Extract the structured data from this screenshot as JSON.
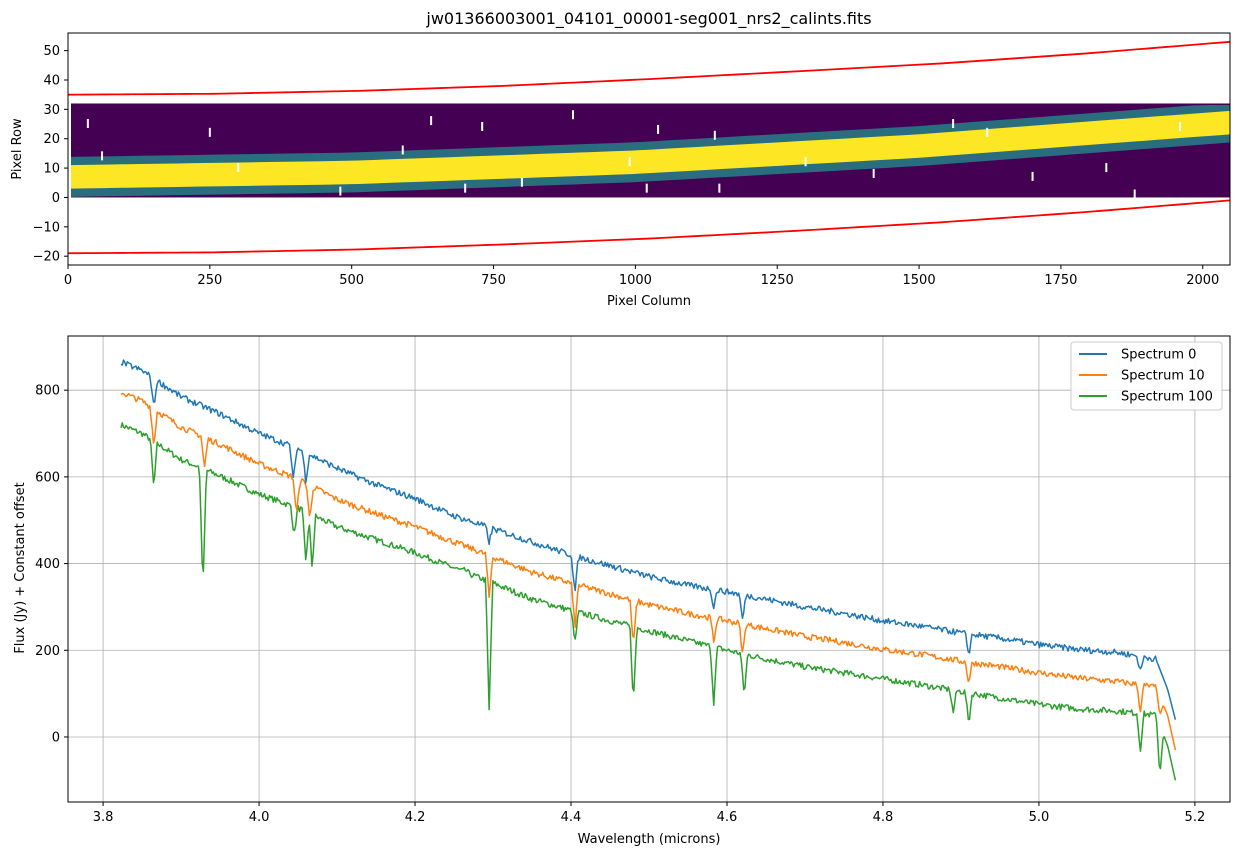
{
  "chart_data": [
    {
      "type": "heatmap",
      "title": "jw01366003001_04101_00001-seg001_nrs2_calints.fits",
      "xlabel": "Pixel Column",
      "ylabel": "Pixel Row",
      "xlim": [
        0,
        2048
      ],
      "ylim": [
        -23,
        56
      ],
      "xticks": [
        0,
        250,
        500,
        750,
        1000,
        1250,
        1500,
        1750,
        2000
      ],
      "yticks": [
        -20,
        -10,
        0,
        10,
        20,
        30,
        40,
        50
      ],
      "image_extent": {
        "x": [
          0,
          2048
        ],
        "y": [
          0,
          32
        ]
      },
      "colormap": {
        "background": "#440154",
        "mid": "#21918c",
        "peak": "#fde725"
      },
      "trace_center": [
        {
          "x": 0,
          "y": 7
        },
        {
          "x": 500,
          "y": 8.5
        },
        {
          "x": 1000,
          "y": 12
        },
        {
          "x": 1500,
          "y": 17.5
        },
        {
          "x": 2048,
          "y": 25.5
        }
      ],
      "trace_halfwidth": 4,
      "cosmic_rays": [
        {
          "x": 35,
          "y": 25
        },
        {
          "x": 60,
          "y": 14
        },
        {
          "x": 250,
          "y": 22
        },
        {
          "x": 300,
          "y": 10
        },
        {
          "x": 480,
          "y": 2
        },
        {
          "x": 590,
          "y": 16
        },
        {
          "x": 640,
          "y": 26
        },
        {
          "x": 700,
          "y": 3
        },
        {
          "x": 730,
          "y": 24
        },
        {
          "x": 800,
          "y": 5
        },
        {
          "x": 890,
          "y": 28
        },
        {
          "x": 990,
          "y": 12
        },
        {
          "x": 1020,
          "y": 3
        },
        {
          "x": 1040,
          "y": 23
        },
        {
          "x": 1140,
          "y": 21
        },
        {
          "x": 1148,
          "y": 3
        },
        {
          "x": 1300,
          "y": 12
        },
        {
          "x": 1420,
          "y": 8
        },
        {
          "x": 1560,
          "y": 25
        },
        {
          "x": 1620,
          "y": 22
        },
        {
          "x": 1700,
          "y": 7
        },
        {
          "x": 1830,
          "y": 10
        },
        {
          "x": 1880,
          "y": 1
        },
        {
          "x": 1960,
          "y": 24
        }
      ],
      "series": [
        {
          "name": "upper-bound",
          "color": "#ff0000",
          "x": [
            0,
            256,
            512,
            768,
            1024,
            1280,
            1536,
            1792,
            2048
          ],
          "y": [
            35,
            35.3,
            36.3,
            38,
            40.3,
            42.9,
            45.6,
            49,
            53
          ]
        },
        {
          "name": "lower-bound",
          "color": "#ff0000",
          "x": [
            0,
            256,
            512,
            768,
            1024,
            1280,
            1536,
            1792,
            2048
          ],
          "y": [
            -19,
            -18.7,
            -17.7,
            -16,
            -14,
            -11.4,
            -8.5,
            -5,
            -1
          ]
        }
      ]
    },
    {
      "type": "line",
      "title": "",
      "xlabel": "Wavelength (microns)",
      "ylabel": "Flux (Jy) + Constant offset",
      "xlim": [
        3.755,
        5.245
      ],
      "ylim": [
        -150,
        925
      ],
      "xticks": [
        3.8,
        4.0,
        4.2,
        4.4,
        4.6,
        4.8,
        5.0,
        5.2
      ],
      "xtick_labels": [
        "3.8",
        "4.0",
        "4.2",
        "4.4",
        "4.6",
        "4.8",
        "5.0",
        "5.2"
      ],
      "yticks": [
        0,
        200,
        400,
        600,
        800
      ],
      "grid": true,
      "legend_position": "top-right",
      "series": [
        {
          "name": "Spectrum 0",
          "color": "#1f77b4",
          "x": [
            3.823,
            3.85,
            3.9,
            3.95,
            4.0,
            4.05,
            4.1,
            4.15,
            4.2,
            4.25,
            4.3,
            4.35,
            4.4,
            4.45,
            4.5,
            4.55,
            4.6,
            4.65,
            4.7,
            4.75,
            4.8,
            4.85,
            4.9,
            4.95,
            5.0,
            5.05,
            5.1,
            5.15,
            5.165,
            5.175
          ],
          "y": [
            865,
            845,
            785,
            745,
            700,
            665,
            620,
            582,
            550,
            510,
            480,
            450,
            420,
            395,
            370,
            350,
            335,
            318,
            300,
            285,
            268,
            255,
            240,
            228,
            213,
            202,
            195,
            180,
            110,
            40
          ],
          "dips": [
            {
              "x": 3.865,
              "y": 760
            },
            {
              "x": 4.044,
              "y": 590
            },
            {
              "x": 4.06,
              "y": 590
            },
            {
              "x": 4.295,
              "y": 450
            },
            {
              "x": 4.405,
              "y": 330
            },
            {
              "x": 4.583,
              "y": 300
            },
            {
              "x": 4.62,
              "y": 270
            },
            {
              "x": 4.91,
              "y": 190
            },
            {
              "x": 5.13,
              "y": 150
            }
          ]
        },
        {
          "name": "Spectrum 10",
          "color": "#ff7f0e",
          "x": [
            3.823,
            3.85,
            3.9,
            3.95,
            4.0,
            4.05,
            4.1,
            4.15,
            4.2,
            4.25,
            4.3,
            4.35,
            4.4,
            4.45,
            4.5,
            4.55,
            4.6,
            4.65,
            4.7,
            4.75,
            4.8,
            4.85,
            4.9,
            4.95,
            5.0,
            5.05,
            5.1,
            5.15,
            5.165,
            5.175
          ],
          "y": [
            795,
            775,
            715,
            675,
            630,
            595,
            548,
            515,
            485,
            450,
            415,
            380,
            355,
            330,
            305,
            285,
            268,
            250,
            232,
            218,
            202,
            190,
            175,
            162,
            148,
            136,
            128,
            115,
            50,
            -30
          ],
          "dips": [
            {
              "x": 3.865,
              "y": 670
            },
            {
              "x": 3.93,
              "y": 620
            },
            {
              "x": 4.048,
              "y": 510
            },
            {
              "x": 4.065,
              "y": 500
            },
            {
              "x": 4.295,
              "y": 320
            },
            {
              "x": 4.405,
              "y": 250
            },
            {
              "x": 4.48,
              "y": 210
            },
            {
              "x": 4.583,
              "y": 220
            },
            {
              "x": 4.62,
              "y": 190
            },
            {
              "x": 4.91,
              "y": 125
            },
            {
              "x": 5.13,
              "y": 60
            },
            {
              "x": 5.155,
              "y": 50
            }
          ]
        },
        {
          "name": "Spectrum 100",
          "color": "#2ca02c",
          "x": [
            3.823,
            3.85,
            3.9,
            3.95,
            4.0,
            4.05,
            4.1,
            4.15,
            4.2,
            4.25,
            4.3,
            4.35,
            4.4,
            4.45,
            4.5,
            4.55,
            4.6,
            4.65,
            4.7,
            4.75,
            4.8,
            4.85,
            4.9,
            4.95,
            5.0,
            5.05,
            5.1,
            5.15,
            5.165,
            5.175
          ],
          "y": [
            720,
            700,
            640,
            602,
            560,
            528,
            485,
            455,
            425,
            390,
            355,
            318,
            292,
            268,
            245,
            222,
            200,
            180,
            162,
            148,
            134,
            120,
            105,
            90,
            75,
            65,
            60,
            50,
            -20,
            -100
          ],
          "dips": [
            {
              "x": 3.865,
              "y": 575
            },
            {
              "x": 3.928,
              "y": 340
            },
            {
              "x": 4.045,
              "y": 465
            },
            {
              "x": 4.06,
              "y": 400
            },
            {
              "x": 4.068,
              "y": 390
            },
            {
              "x": 4.265,
              "y": 385
            },
            {
              "x": 4.295,
              "y": 60
            },
            {
              "x": 4.405,
              "y": 215
            },
            {
              "x": 4.48,
              "y": 80
            },
            {
              "x": 4.583,
              "y": 80
            },
            {
              "x": 4.622,
              "y": 95
            },
            {
              "x": 4.89,
              "y": 55
            },
            {
              "x": 4.91,
              "y": 30
            },
            {
              "x": 5.13,
              "y": -30
            },
            {
              "x": 5.155,
              "y": -90
            }
          ]
        }
      ]
    }
  ]
}
